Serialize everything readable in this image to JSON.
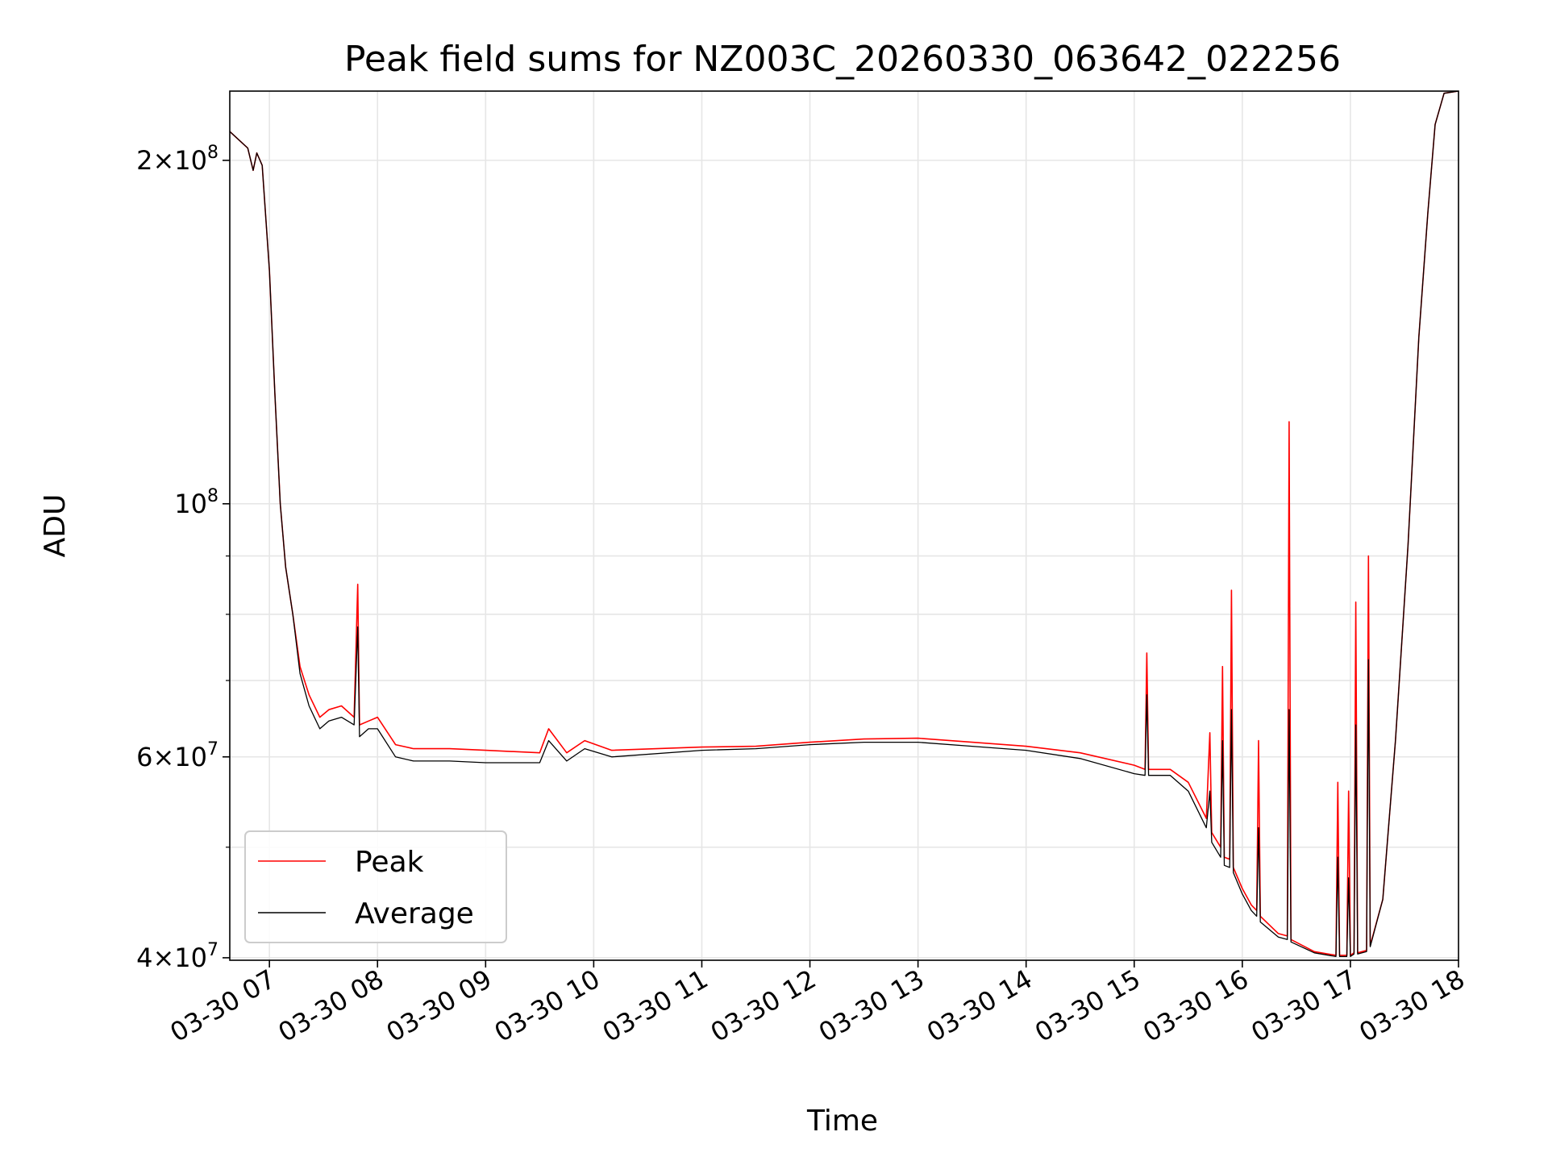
{
  "chart_data": {
    "type": "line",
    "title": "Peak field sums for NZ003C_20260330_063642_022256",
    "xlabel": "Time",
    "ylabel": "ADU",
    "x_axis": {
      "type": "time",
      "range": [
        "2026-03-30 06:38",
        "2026-03-30 18:00"
      ],
      "tick_values": [
        "2026-03-30 07:00",
        "2026-03-30 08:00",
        "2026-03-30 09:00",
        "2026-03-30 10:00",
        "2026-03-30 11:00",
        "2026-03-30 12:00",
        "2026-03-30 13:00",
        "2026-03-30 14:00",
        "2026-03-30 15:00",
        "2026-03-30 16:00",
        "2026-03-30 17:00",
        "2026-03-30 18:00"
      ],
      "tick_labels": [
        "03-30 07",
        "03-30 08",
        "03-30 09",
        "03-30 10",
        "03-30 11",
        "03-30 12",
        "03-30 13",
        "03-30 14",
        "03-30 15",
        "03-30 16",
        "03-30 17",
        "03-30 18"
      ],
      "tick_rotation_deg": 30
    },
    "y_axis": {
      "scale": "log",
      "range": [
        39800000,
        230000000
      ],
      "major_ticks": [
        {
          "value": 100000000,
          "base": "10",
          "exp": "8"
        },
        {
          "value": 200000000,
          "mant": "2",
          "base": "10",
          "exp": "8"
        },
        {
          "value": 60000000,
          "mant": "6",
          "base": "10",
          "exp": "7"
        },
        {
          "value": 40000000,
          "mant": "4",
          "base": "10",
          "exp": "7"
        }
      ],
      "minor_grid": [
        50000000,
        70000000,
        80000000,
        90000000,
        300000000
      ]
    },
    "grid": true,
    "legend": {
      "position": "lower-left",
      "entries": [
        "Peak",
        "Average"
      ]
    },
    "series": [
      {
        "name": "Peak",
        "color": "#ff0000",
        "points": [
          [
            "2026-03-30 06:38",
            212000000
          ],
          [
            "2026-03-30 06:48",
            205000000
          ],
          [
            "2026-03-30 06:51",
            196000000
          ],
          [
            "2026-03-30 06:53",
            203000000
          ],
          [
            "2026-03-30 06:56",
            198000000
          ],
          [
            "2026-03-30 07:00",
            160000000
          ],
          [
            "2026-03-30 07:03",
            125000000
          ],
          [
            "2026-03-30 07:06",
            100000000
          ],
          [
            "2026-03-30 07:09",
            88000000
          ],
          [
            "2026-03-30 07:13",
            80000000
          ],
          [
            "2026-03-30 07:17",
            72000000
          ],
          [
            "2026-03-30 07:22",
            68000000
          ],
          [
            "2026-03-30 07:28",
            65000000
          ],
          [
            "2026-03-30 07:33",
            66000000
          ],
          [
            "2026-03-30 07:40",
            66500000
          ],
          [
            "2026-03-30 07:47",
            65000000
          ],
          [
            "2026-03-30 07:49",
            85000000
          ],
          [
            "2026-03-30 07:50",
            64000000
          ],
          [
            "2026-03-30 07:55",
            64500000
          ],
          [
            "2026-03-30 08:00",
            65000000
          ],
          [
            "2026-03-30 08:10",
            61500000
          ],
          [
            "2026-03-30 08:20",
            61000000
          ],
          [
            "2026-03-30 08:40",
            61000000
          ],
          [
            "2026-03-30 09:00",
            60800000
          ],
          [
            "2026-03-30 09:30",
            60500000
          ],
          [
            "2026-03-30 09:35",
            63500000
          ],
          [
            "2026-03-30 09:45",
            60500000
          ],
          [
            "2026-03-30 09:55",
            62000000
          ],
          [
            "2026-03-30 10:10",
            60800000
          ],
          [
            "2026-03-30 11:00",
            61200000
          ],
          [
            "2026-03-30 11:30",
            61300000
          ],
          [
            "2026-03-30 12:00",
            61800000
          ],
          [
            "2026-03-30 12:30",
            62200000
          ],
          [
            "2026-03-30 13:00",
            62300000
          ],
          [
            "2026-03-30 13:30",
            61800000
          ],
          [
            "2026-03-30 14:00",
            61300000
          ],
          [
            "2026-03-30 14:30",
            60500000
          ],
          [
            "2026-03-30 15:00",
            59000000
          ],
          [
            "2026-03-30 15:06",
            58500000
          ],
          [
            "2026-03-30 15:07",
            74000000
          ],
          [
            "2026-03-30 15:08",
            58500000
          ],
          [
            "2026-03-30 15:20",
            58500000
          ],
          [
            "2026-03-30 15:30",
            57000000
          ],
          [
            "2026-03-30 15:40",
            53000000
          ],
          [
            "2026-03-30 15:42",
            63000000
          ],
          [
            "2026-03-30 15:43",
            51500000
          ],
          [
            "2026-03-30 15:48",
            50000000
          ],
          [
            "2026-03-30 15:49",
            72000000
          ],
          [
            "2026-03-30 15:50",
            49000000
          ],
          [
            "2026-03-30 15:53",
            48800000
          ],
          [
            "2026-03-30 15:54",
            84000000
          ],
          [
            "2026-03-30 15:55",
            48000000
          ],
          [
            "2026-03-30 16:00",
            46000000
          ],
          [
            "2026-03-30 16:05",
            44500000
          ],
          [
            "2026-03-30 16:08",
            44000000
          ],
          [
            "2026-03-30 16:09",
            62000000
          ],
          [
            "2026-03-30 16:10",
            43500000
          ],
          [
            "2026-03-30 16:20",
            42000000
          ],
          [
            "2026-03-30 16:25",
            41800000
          ],
          [
            "2026-03-30 16:26",
            118000000
          ],
          [
            "2026-03-30 16:27",
            41500000
          ],
          [
            "2026-03-30 16:40",
            40500000
          ],
          [
            "2026-03-30 16:52",
            40200000
          ],
          [
            "2026-03-30 16:53",
            57000000
          ],
          [
            "2026-03-30 16:54",
            40200000
          ],
          [
            "2026-03-30 16:58",
            40200000
          ],
          [
            "2026-03-30 16:59",
            56000000
          ],
          [
            "2026-03-30 17:00",
            40200000
          ],
          [
            "2026-03-30 17:02",
            40400000
          ],
          [
            "2026-03-30 17:03",
            82000000
          ],
          [
            "2026-03-30 17:04",
            40400000
          ],
          [
            "2026-03-30 17:09",
            40600000
          ],
          [
            "2026-03-30 17:10",
            90000000
          ],
          [
            "2026-03-30 17:11",
            41000000
          ],
          [
            "2026-03-30 17:18",
            45000000
          ],
          [
            "2026-03-30 17:25",
            62000000
          ],
          [
            "2026-03-30 17:32",
            92000000
          ],
          [
            "2026-03-30 17:38",
            140000000
          ],
          [
            "2026-03-30 17:43",
            180000000
          ],
          [
            "2026-03-30 17:47",
            215000000
          ],
          [
            "2026-03-30 17:52",
            229000000
          ],
          [
            "2026-03-30 18:00",
            230000000
          ]
        ]
      },
      {
        "name": "Average",
        "color": "#000000",
        "points": [
          [
            "2026-03-30 06:38",
            212000000
          ],
          [
            "2026-03-30 06:48",
            205000000
          ],
          [
            "2026-03-30 06:51",
            196000000
          ],
          [
            "2026-03-30 06:53",
            203000000
          ],
          [
            "2026-03-30 06:56",
            198000000
          ],
          [
            "2026-03-30 07:00",
            160000000
          ],
          [
            "2026-03-30 07:03",
            125000000
          ],
          [
            "2026-03-30 07:06",
            100000000
          ],
          [
            "2026-03-30 07:09",
            88000000
          ],
          [
            "2026-03-30 07:13",
            80000000
          ],
          [
            "2026-03-30 07:17",
            71000000
          ],
          [
            "2026-03-30 07:22",
            66500000
          ],
          [
            "2026-03-30 07:28",
            63500000
          ],
          [
            "2026-03-30 07:33",
            64500000
          ],
          [
            "2026-03-30 07:40",
            65000000
          ],
          [
            "2026-03-30 07:47",
            64000000
          ],
          [
            "2026-03-30 07:49",
            78000000
          ],
          [
            "2026-03-30 07:50",
            62500000
          ],
          [
            "2026-03-30 07:55",
            63500000
          ],
          [
            "2026-03-30 08:00",
            63500000
          ],
          [
            "2026-03-30 08:10",
            60000000
          ],
          [
            "2026-03-30 08:20",
            59500000
          ],
          [
            "2026-03-30 08:40",
            59500000
          ],
          [
            "2026-03-30 09:00",
            59300000
          ],
          [
            "2026-03-30 09:30",
            59300000
          ],
          [
            "2026-03-30 09:35",
            62000000
          ],
          [
            "2026-03-30 09:45",
            59500000
          ],
          [
            "2026-03-30 09:55",
            61000000
          ],
          [
            "2026-03-30 10:10",
            60000000
          ],
          [
            "2026-03-30 11:00",
            60800000
          ],
          [
            "2026-03-30 11:30",
            61000000
          ],
          [
            "2026-03-30 12:00",
            61500000
          ],
          [
            "2026-03-30 12:30",
            61800000
          ],
          [
            "2026-03-30 13:00",
            61800000
          ],
          [
            "2026-03-30 13:30",
            61300000
          ],
          [
            "2026-03-30 14:00",
            60800000
          ],
          [
            "2026-03-30 14:30",
            59800000
          ],
          [
            "2026-03-30 15:00",
            58000000
          ],
          [
            "2026-03-30 15:06",
            57800000
          ],
          [
            "2026-03-30 15:07",
            68000000
          ],
          [
            "2026-03-30 15:08",
            57800000
          ],
          [
            "2026-03-30 15:20",
            57800000
          ],
          [
            "2026-03-30 15:30",
            56000000
          ],
          [
            "2026-03-30 15:40",
            52000000
          ],
          [
            "2026-03-30 15:42",
            56000000
          ],
          [
            "2026-03-30 15:43",
            50500000
          ],
          [
            "2026-03-30 15:48",
            49000000
          ],
          [
            "2026-03-30 15:49",
            62000000
          ],
          [
            "2026-03-30 15:50",
            48200000
          ],
          [
            "2026-03-30 15:53",
            48000000
          ],
          [
            "2026-03-30 15:54",
            66000000
          ],
          [
            "2026-03-30 15:55",
            47500000
          ],
          [
            "2026-03-30 16:00",
            45500000
          ],
          [
            "2026-03-30 16:05",
            44000000
          ],
          [
            "2026-03-30 16:08",
            43500000
          ],
          [
            "2026-03-30 16:09",
            52000000
          ],
          [
            "2026-03-30 16:10",
            43000000
          ],
          [
            "2026-03-30 16:20",
            41700000
          ],
          [
            "2026-03-30 16:25",
            41500000
          ],
          [
            "2026-03-30 16:26",
            66000000
          ],
          [
            "2026-03-30 16:27",
            41300000
          ],
          [
            "2026-03-30 16:40",
            40400000
          ],
          [
            "2026-03-30 16:52",
            40100000
          ],
          [
            "2026-03-30 16:53",
            49000000
          ],
          [
            "2026-03-30 16:54",
            40100000
          ],
          [
            "2026-03-30 16:58",
            40100000
          ],
          [
            "2026-03-30 16:59",
            47000000
          ],
          [
            "2026-03-30 17:00",
            40100000
          ],
          [
            "2026-03-30 17:02",
            40300000
          ],
          [
            "2026-03-30 17:03",
            64000000
          ],
          [
            "2026-03-30 17:04",
            40300000
          ],
          [
            "2026-03-30 17:09",
            40500000
          ],
          [
            "2026-03-30 17:10",
            73000000
          ],
          [
            "2026-03-30 17:11",
            40900000
          ],
          [
            "2026-03-30 17:18",
            45000000
          ],
          [
            "2026-03-30 17:25",
            62000000
          ],
          [
            "2026-03-30 17:32",
            92000000
          ],
          [
            "2026-03-30 17:38",
            140000000
          ],
          [
            "2026-03-30 17:43",
            180000000
          ],
          [
            "2026-03-30 17:47",
            215000000
          ],
          [
            "2026-03-30 17:52",
            229000000
          ],
          [
            "2026-03-30 18:00",
            230000000
          ]
        ]
      }
    ]
  }
}
